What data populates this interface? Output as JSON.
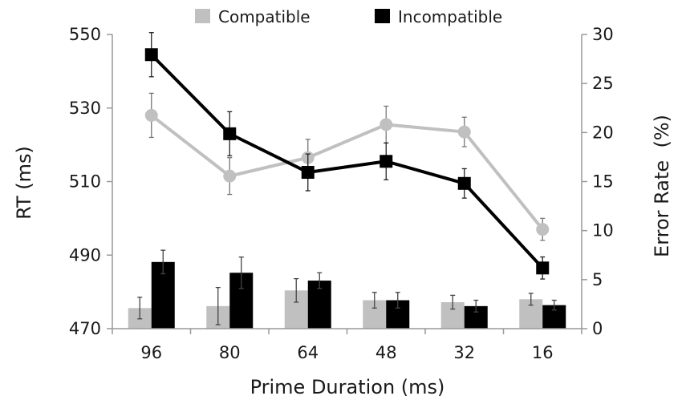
{
  "chart_data": {
    "type": "bar+line",
    "categories": [
      "96",
      "80",
      "64",
      "48",
      "32",
      "16"
    ],
    "xlabel": "Prime Duration (ms)",
    "y_left": {
      "label": "RT (ms)",
      "ticks": [
        "470",
        "490",
        "510",
        "530",
        "550"
      ],
      "range": [
        470,
        550
      ]
    },
    "y_right": {
      "label": "Error Rate  (%)",
      "ticks": [
        "0",
        "5",
        "10",
        "15",
        "20",
        "25",
        "30"
      ],
      "range": [
        0,
        30
      ]
    },
    "legend": {
      "position": "top-center",
      "entries": [
        "Compatible",
        "Incompatible"
      ]
    },
    "grid": false,
    "rt_series": [
      {
        "name": "Compatible",
        "color": "#c0c0c0",
        "values": [
          528,
          511.5,
          516.5,
          525.5,
          523.5,
          497
        ],
        "errors": [
          6,
          5,
          5,
          5,
          4,
          3
        ]
      },
      {
        "name": "Incompatible",
        "color": "#000000",
        "values": [
          544.5,
          523,
          512.5,
          515.5,
          509.5,
          486.5
        ],
        "errors": [
          6,
          6,
          5,
          5,
          4,
          3
        ]
      }
    ],
    "error_series": [
      {
        "name": "Compatible",
        "color": "#c0c0c0",
        "values": [
          2.1,
          2.3,
          3.9,
          2.9,
          2.7,
          3.0
        ],
        "errors": [
          1.1,
          1.9,
          1.2,
          0.8,
          0.7,
          0.6
        ]
      },
      {
        "name": "Incompatible",
        "color": "#000000",
        "values": [
          6.8,
          5.7,
          4.9,
          2.9,
          2.3,
          2.4
        ],
        "errors": [
          1.2,
          1.6,
          0.8,
          0.8,
          0.6,
          0.5
        ]
      }
    ]
  }
}
